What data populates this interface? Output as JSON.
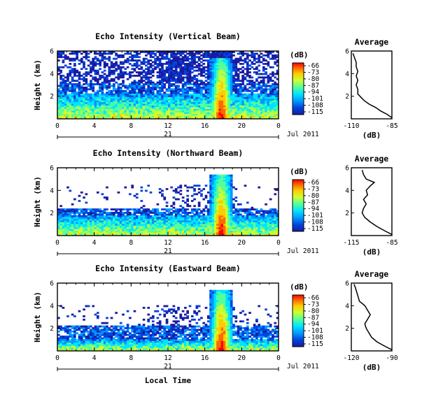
{
  "x_axis_label": "Local Time",
  "month_label": "Jul 2011",
  "colorbar": {
    "unit": "(dB)",
    "ticks": [
      "-66",
      "-73",
      "-80",
      "-87",
      "-94",
      "-101",
      "-108",
      "-115"
    ],
    "colors": [
      "#ff0000",
      "#ff6a00",
      "#ffcc00",
      "#ccff33",
      "#55ff99",
      "#00e5ff",
      "#0099ff",
      "#0044dd",
      "#1a1aa0"
    ]
  },
  "profile_title": "Average",
  "profile_unit": "(dB)",
  "chart_data": [
    {
      "type": "heatmap",
      "title": "Echo Intensity (Vertical Beam)",
      "ylabel": "Height (km)",
      "xlabel": "Local Time",
      "x_ticks": [
        "0",
        "4",
        "8",
        "12",
        "16",
        "20",
        "0"
      ],
      "xlim": [
        0,
        24
      ],
      "y_ticks": [
        "2",
        "4",
        "6"
      ],
      "ylim": [
        0,
        6
      ],
      "date_tick": "21",
      "month": "Jul 2011",
      "grid": false
    },
    {
      "type": "line",
      "title": "Average",
      "xlabel": "(dB)",
      "x_ticks": [
        "-110",
        "-85"
      ],
      "xlim": [
        -110,
        -85
      ],
      "y_ticks": [
        "2",
        "4",
        "6"
      ],
      "ylim": [
        0,
        6
      ],
      "profile": [
        [
          0.1,
          -85
        ],
        [
          0.4,
          -88
        ],
        [
          0.7,
          -92
        ],
        [
          1.0,
          -95
        ],
        [
          1.3,
          -99
        ],
        [
          1.6,
          -102
        ],
        [
          1.9,
          -104
        ],
        [
          2.2,
          -106
        ],
        [
          2.6,
          -106
        ],
        [
          3.0,
          -107
        ],
        [
          3.4,
          -106
        ],
        [
          3.8,
          -107
        ],
        [
          4.2,
          -106
        ],
        [
          4.6,
          -107
        ],
        [
          5.0,
          -107
        ],
        [
          5.4,
          -108
        ],
        [
          5.8,
          -109
        ]
      ]
    },
    {
      "type": "heatmap",
      "title": "Echo Intensity (Northward Beam)",
      "ylabel": "Height (km)",
      "xlabel": "Local Time",
      "x_ticks": [
        "0",
        "4",
        "8",
        "12",
        "16",
        "20",
        "0"
      ],
      "xlim": [
        0,
        24
      ],
      "y_ticks": [
        "2",
        "4",
        "6"
      ],
      "ylim": [
        0,
        6
      ],
      "date_tick": "21",
      "month": "Jul 2011",
      "grid": false
    },
    {
      "type": "line",
      "title": "Average",
      "xlabel": "(dB)",
      "x_ticks": [
        "-115",
        "-85"
      ],
      "xlim": [
        -115,
        -85
      ],
      "y_ticks": [
        "2",
        "4",
        "6"
      ],
      "ylim": [
        0,
        6
      ],
      "profile": [
        [
          0.1,
          -85
        ],
        [
          0.4,
          -90
        ],
        [
          0.8,
          -96
        ],
        [
          1.2,
          -101
        ],
        [
          1.6,
          -105
        ],
        [
          2.0,
          -107
        ],
        [
          2.4,
          -106
        ],
        [
          2.8,
          -104
        ],
        [
          3.2,
          -106
        ],
        [
          3.6,
          -103
        ],
        [
          4.0,
          -104
        ],
        [
          4.4,
          -101
        ],
        [
          4.7,
          -98
        ],
        [
          5.0,
          -104
        ],
        [
          5.4,
          -106
        ],
        [
          5.8,
          -107
        ]
      ]
    },
    {
      "type": "heatmap",
      "title": "Echo Intensity (Eastward Beam)",
      "ylabel": "Height (km)",
      "xlabel": "Local Time",
      "x_ticks": [
        "0",
        "4",
        "8",
        "12",
        "16",
        "20",
        "0"
      ],
      "xlim": [
        0,
        24
      ],
      "y_ticks": [
        "2",
        "4",
        "6"
      ],
      "ylim": [
        0,
        6
      ],
      "date_tick": "21",
      "month": "Jul 2011",
      "grid": false
    },
    {
      "type": "line",
      "title": "Average",
      "xlabel": "(dB)",
      "x_ticks": [
        "-120",
        "-90"
      ],
      "xlim": [
        -120,
        -90
      ],
      "y_ticks": [
        "2",
        "4",
        "6"
      ],
      "ylim": [
        0,
        6
      ],
      "profile": [
        [
          0.1,
          -90
        ],
        [
          0.4,
          -95
        ],
        [
          0.8,
          -101
        ],
        [
          1.2,
          -105
        ],
        [
          1.6,
          -107
        ],
        [
          2.0,
          -109
        ],
        [
          2.4,
          -110
        ],
        [
          2.8,
          -108
        ],
        [
          3.2,
          -106
        ],
        [
          3.6,
          -108
        ],
        [
          4.0,
          -110
        ],
        [
          4.4,
          -114
        ],
        [
          4.8,
          -115
        ],
        [
          5.2,
          -116
        ],
        [
          5.6,
          -117
        ],
        [
          5.9,
          -118
        ]
      ]
    }
  ]
}
